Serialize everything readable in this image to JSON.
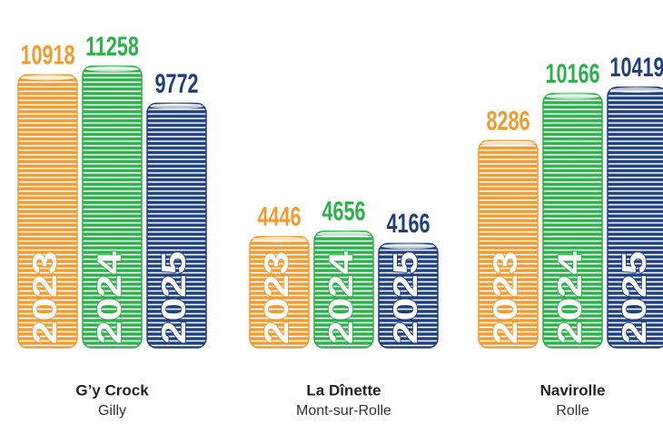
{
  "chart_data": {
    "type": "bar",
    "categories": [
      "G’y Crock",
      "La Dînette",
      "Navirolle"
    ],
    "category_locations": [
      "Gilly",
      "Mont-sur-Rolle",
      "Rolle"
    ],
    "series": [
      {
        "name": "2023",
        "color": "#f39a2e",
        "values": [
          10918,
          4446,
          8286
        ]
      },
      {
        "name": "2024",
        "color": "#2bb04a",
        "values": [
          11258,
          4656,
          10166
        ]
      },
      {
        "name": "2025",
        "color": "#1d3f7f",
        "values": [
          9772,
          4166,
          10419
        ]
      }
    ]
  }
}
